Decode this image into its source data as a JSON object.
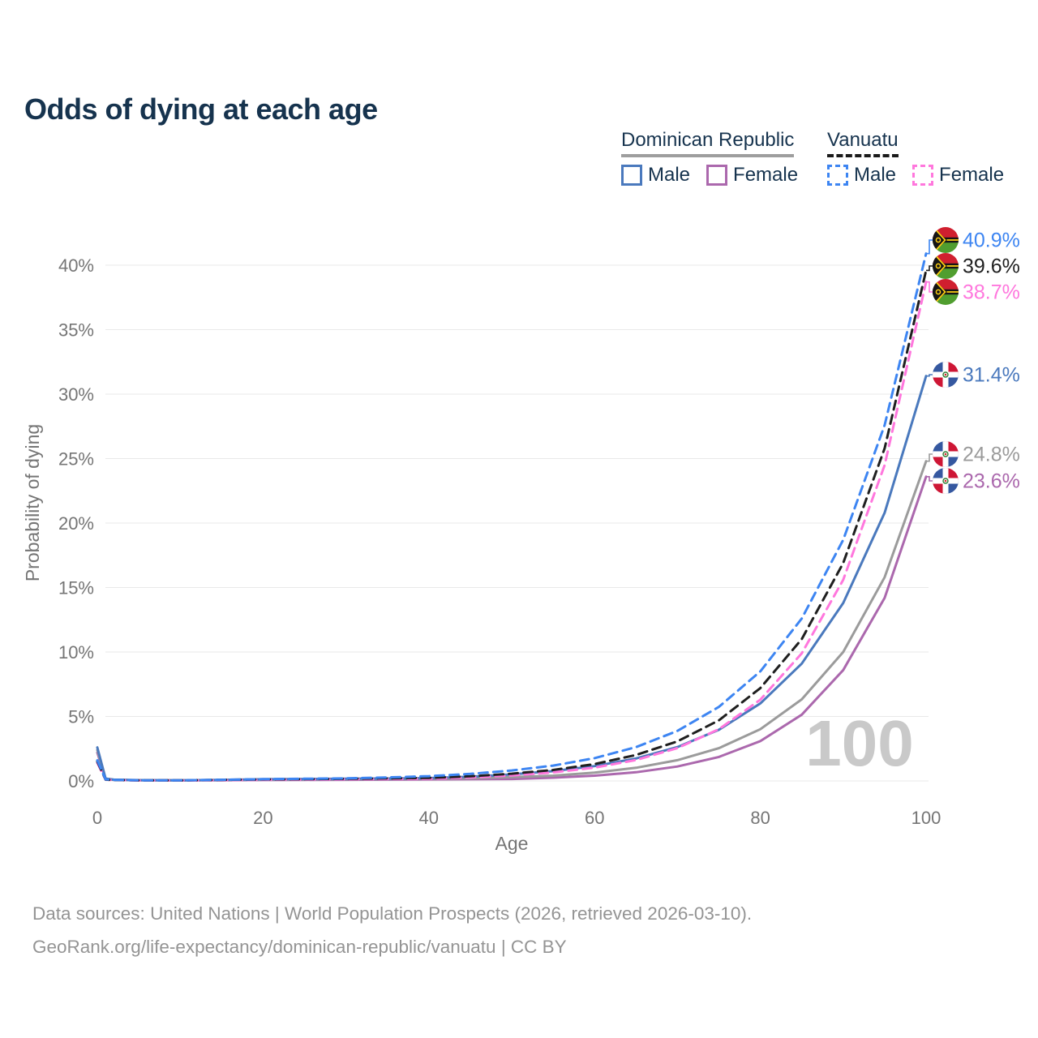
{
  "title": "Odds of dying at each age",
  "legend": {
    "groups": [
      {
        "name": "Dominican Republic",
        "line_style": "solid",
        "underline_color": "#9e9e9e",
        "items": [
          {
            "label": "Male",
            "color": "#4a79bd"
          },
          {
            "label": "Female",
            "color": "#ab68ad"
          }
        ]
      },
      {
        "name": "Vanuatu",
        "line_style": "dashed",
        "underline_color": "#1a1a1a",
        "items": [
          {
            "label": "Male",
            "color": "#3d85f2"
          },
          {
            "label": "Female",
            "color": "#ff77dd"
          }
        ]
      }
    ]
  },
  "axes": {
    "x_label": "Age",
    "y_label": "Probability of dying",
    "x_ticks": [
      "0",
      "20",
      "40",
      "60",
      "80",
      "100"
    ],
    "y_ticks": [
      "0%",
      "5%",
      "10%",
      "15%",
      "20%",
      "25%",
      "30%",
      "35%",
      "40%"
    ]
  },
  "watermark": "100",
  "footer": {
    "line1": "Data sources: United Nations | World Population Prospects (2026, retrieved 2026-03-10).",
    "line2": "GeoRank.org/life-expectancy/dominican-republic/vanuatu | CC BY"
  },
  "chart_data": {
    "type": "line",
    "title": "Odds of dying at each age",
    "xlabel": "Age",
    "ylabel": "Probability of dying",
    "xlim": [
      0,
      100
    ],
    "ylim_percent": [
      0,
      42
    ],
    "grid": "horizontal",
    "legend_position": "top-right",
    "series": [
      {
        "id": "vanuatu-male",
        "name": "Vanuatu Male",
        "country": "Vanuatu",
        "sex": "male",
        "style": "dashed",
        "color": "#3d85f2",
        "end_label": "40.9%",
        "flag": "vu",
        "points": [
          [
            0,
            1.6
          ],
          [
            1,
            0.12
          ],
          [
            2,
            0.08
          ],
          [
            5,
            0.05
          ],
          [
            10,
            0.05
          ],
          [
            15,
            0.09
          ],
          [
            20,
            0.14
          ],
          [
            25,
            0.17
          ],
          [
            30,
            0.2
          ],
          [
            35,
            0.27
          ],
          [
            40,
            0.37
          ],
          [
            45,
            0.55
          ],
          [
            50,
            0.81
          ],
          [
            55,
            1.19
          ],
          [
            60,
            1.77
          ],
          [
            65,
            2.62
          ],
          [
            70,
            3.88
          ],
          [
            75,
            5.74
          ],
          [
            80,
            8.5
          ],
          [
            85,
            12.6
          ],
          [
            90,
            18.7
          ],
          [
            95,
            27.6
          ],
          [
            100,
            40.9
          ]
        ]
      },
      {
        "id": "vanuatu-total",
        "name": "Vanuatu",
        "country": "Vanuatu",
        "sex": "both",
        "style": "dashed",
        "color": "#1f1f1f",
        "end_label": "39.6%",
        "flag": "vu",
        "points": [
          [
            0,
            1.5
          ],
          [
            1,
            0.11
          ],
          [
            2,
            0.07
          ],
          [
            5,
            0.05
          ],
          [
            10,
            0.045
          ],
          [
            15,
            0.08
          ],
          [
            20,
            0.12
          ],
          [
            25,
            0.14
          ],
          [
            30,
            0.17
          ],
          [
            35,
            0.2
          ],
          [
            40,
            0.24
          ],
          [
            45,
            0.36
          ],
          [
            50,
            0.56
          ],
          [
            55,
            0.85
          ],
          [
            60,
            1.31
          ],
          [
            65,
            2.01
          ],
          [
            70,
            3.07
          ],
          [
            75,
            4.7
          ],
          [
            80,
            7.2
          ],
          [
            85,
            11.0
          ],
          [
            90,
            16.9
          ],
          [
            95,
            25.8
          ],
          [
            100,
            39.6
          ]
        ]
      },
      {
        "id": "vanuatu-female",
        "name": "Vanuatu Female",
        "country": "Vanuatu",
        "sex": "female",
        "style": "dashed",
        "color": "#ff77dd",
        "end_label": "38.7%",
        "flag": "vu",
        "points": [
          [
            0,
            1.4
          ],
          [
            1,
            0.1
          ],
          [
            2,
            0.07
          ],
          [
            5,
            0.04
          ],
          [
            10,
            0.04
          ],
          [
            15,
            0.06
          ],
          [
            20,
            0.09
          ],
          [
            25,
            0.11
          ],
          [
            30,
            0.13
          ],
          [
            35,
            0.15
          ],
          [
            40,
            0.17
          ],
          [
            45,
            0.27
          ],
          [
            50,
            0.42
          ],
          [
            55,
            0.66
          ],
          [
            60,
            1.03
          ],
          [
            65,
            1.62
          ],
          [
            70,
            2.55
          ],
          [
            75,
            4.01
          ],
          [
            80,
            6.3
          ],
          [
            85,
            9.9
          ],
          [
            90,
            15.6
          ],
          [
            95,
            24.5
          ],
          [
            100,
            38.7
          ]
        ]
      },
      {
        "id": "dominican-republic-male",
        "name": "Dominican Republic Male",
        "country": "Dominican Republic",
        "sex": "male",
        "style": "solid",
        "color": "#4a79bd",
        "end_label": "31.4%",
        "flag": "do",
        "points": [
          [
            0,
            2.6
          ],
          [
            1,
            0.18
          ],
          [
            2,
            0.1
          ],
          [
            5,
            0.06
          ],
          [
            10,
            0.05
          ],
          [
            15,
            0.08
          ],
          [
            20,
            0.13
          ],
          [
            25,
            0.15
          ],
          [
            30,
            0.17
          ],
          [
            35,
            0.19
          ],
          [
            40,
            0.22
          ],
          [
            45,
            0.33
          ],
          [
            50,
            0.5
          ],
          [
            55,
            0.76
          ],
          [
            60,
            1.15
          ],
          [
            65,
            1.74
          ],
          [
            70,
            2.63
          ],
          [
            75,
            3.97
          ],
          [
            80,
            6.01
          ],
          [
            85,
            9.1
          ],
          [
            90,
            13.8
          ],
          [
            95,
            20.8
          ],
          [
            100,
            31.4
          ]
        ]
      },
      {
        "id": "dominican-republic-total",
        "name": "Dominican Republic",
        "country": "Dominican Republic",
        "sex": "both",
        "style": "solid",
        "color": "#9b9b9b",
        "end_label": "24.8%",
        "flag": "do",
        "points": [
          [
            0,
            2.4
          ],
          [
            1,
            0.16
          ],
          [
            2,
            0.09
          ],
          [
            5,
            0.055
          ],
          [
            10,
            0.045
          ],
          [
            15,
            0.07
          ],
          [
            20,
            0.1
          ],
          [
            25,
            0.12
          ],
          [
            30,
            0.13
          ],
          [
            35,
            0.15
          ],
          [
            40,
            0.17
          ],
          [
            45,
            0.21
          ],
          [
            50,
            0.3
          ],
          [
            55,
            0.41
          ],
          [
            60,
            0.65
          ],
          [
            65,
            1.02
          ],
          [
            70,
            1.61
          ],
          [
            75,
            2.54
          ],
          [
            80,
            4.01
          ],
          [
            85,
            6.33
          ],
          [
            90,
            10.0
          ],
          [
            95,
            15.8
          ],
          [
            100,
            24.8
          ]
        ]
      },
      {
        "id": "dominican-republic-female",
        "name": "Dominican Republic Female",
        "country": "Dominican Republic",
        "sex": "female",
        "style": "solid",
        "color": "#ab68ad",
        "end_label": "23.6%",
        "flag": "do",
        "points": [
          [
            0,
            2.2
          ],
          [
            1,
            0.15
          ],
          [
            2,
            0.08
          ],
          [
            5,
            0.05
          ],
          [
            10,
            0.04
          ],
          [
            15,
            0.05
          ],
          [
            20,
            0.07
          ],
          [
            25,
            0.08
          ],
          [
            30,
            0.09
          ],
          [
            35,
            0.1
          ],
          [
            40,
            0.12
          ],
          [
            45,
            0.13
          ],
          [
            50,
            0.15
          ],
          [
            55,
            0.25
          ],
          [
            60,
            0.41
          ],
          [
            65,
            0.67
          ],
          [
            70,
            1.12
          ],
          [
            75,
            1.86
          ],
          [
            80,
            3.09
          ],
          [
            85,
            5.14
          ],
          [
            90,
            8.6
          ],
          [
            95,
            14.2
          ],
          [
            100,
            23.6
          ]
        ]
      }
    ],
    "flag_colors": {
      "vu_red": "#d01f2f",
      "vu_green": "#509e2f",
      "vu_black": "#151515",
      "vu_yellow": "#fdce12",
      "do_blue": "#3558a0",
      "do_red": "#ce1635",
      "do_white": "#ffffff",
      "do_emblem_green": "#2e7d32",
      "do_emblem_red": "#c62828"
    }
  }
}
